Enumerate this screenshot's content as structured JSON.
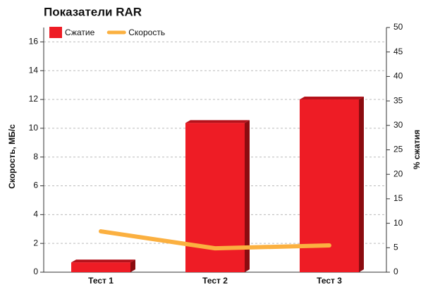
{
  "chart_data": {
    "type": "bar-line",
    "title": "Показатели RAR",
    "y_label": "Скорость, МБ/с",
    "y2_label": "% сжатия",
    "categories": [
      "Тест 1",
      "Тест 2",
      "Тест 3"
    ],
    "series": [
      {
        "name": "Сжатие",
        "type": "bar",
        "axis": "y2",
        "color": "#ee1c25",
        "values": [
          2.0,
          30.5,
          35.3
        ]
      },
      {
        "name": "Скорость",
        "type": "line",
        "axis": "y",
        "color": "#fbb040",
        "values": [
          2.84,
          1.66,
          1.86
        ]
      }
    ],
    "ylim": [
      0,
      17
    ],
    "yticks": [
      0,
      2,
      4,
      6,
      8,
      10,
      12,
      14,
      16
    ],
    "y2lim": [
      0,
      50
    ],
    "y2ticks": [
      0,
      5,
      10,
      15,
      20,
      25,
      30,
      35,
      40,
      45,
      50
    ],
    "grid": true,
    "legend": "top-left"
  }
}
